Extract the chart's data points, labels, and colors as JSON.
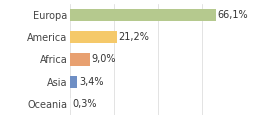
{
  "categories": [
    "Europa",
    "America",
    "Africa",
    "Asia",
    "Oceania"
  ],
  "values": [
    66.1,
    21.2,
    9.0,
    3.4,
    0.3
  ],
  "labels": [
    "66,1%",
    "21,2%",
    "9,0%",
    "3,4%",
    "0,3%"
  ],
  "bar_colors": [
    "#b5c98e",
    "#f5c96a",
    "#e8a070",
    "#6e8ec4",
    "#eeeeee"
  ],
  "background_color": "#ffffff",
  "xlim": [
    0,
    80
  ],
  "bar_height": 0.55,
  "label_fontsize": 7.0,
  "tick_fontsize": 7.0,
  "grid_color": "#d8d8d8"
}
